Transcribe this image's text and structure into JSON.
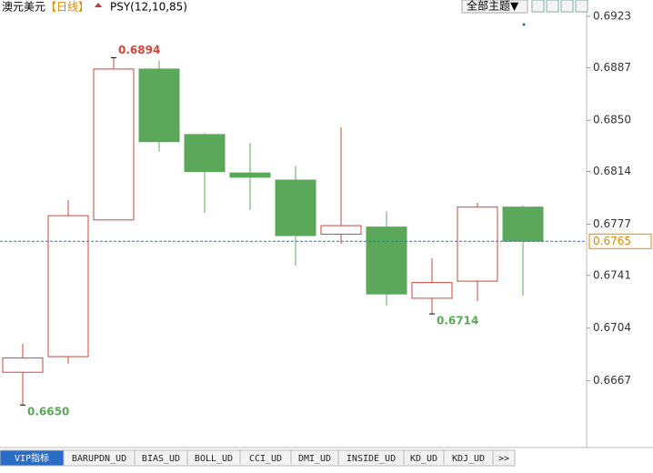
{
  "header": {
    "symbol": "澳元美元",
    "period": "【日线】",
    "indicator": "PSY(12,10,85)",
    "theme_button": "全部主题▼"
  },
  "chart_data": {
    "type": "candlestick",
    "open": [
      0.6673,
      0.6684,
      0.678,
      0.6886,
      0.684,
      0.6813,
      0.6808,
      0.677,
      0.6775,
      0.6725,
      0.6737,
      0.6789
    ],
    "high": [
      0.6693,
      0.6794,
      0.6894,
      0.6892,
      0.6841,
      0.6834,
      0.6818,
      0.6845,
      0.6786,
      0.6753,
      0.6792,
      0.679
    ],
    "low": [
      0.665,
      0.6679,
      0.678,
      0.6828,
      0.6785,
      0.6787,
      0.6748,
      0.6763,
      0.672,
      0.6714,
      0.6723,
      0.6727
    ],
    "close": [
      0.6683,
      0.6783,
      0.6886,
      0.6835,
      0.6814,
      0.681,
      0.6769,
      0.6776,
      0.6728,
      0.6736,
      0.6789,
      0.6765
    ],
    "high_labels": [
      null,
      null,
      "0.6894",
      null,
      null,
      null,
      null,
      null,
      null,
      null,
      null,
      null
    ],
    "low_labels": [
      "0.6650",
      null,
      null,
      null,
      null,
      null,
      null,
      null,
      null,
      "0.6714",
      null,
      null
    ],
    "up_color": "#d0453a",
    "down_color": "#5ca85a",
    "last_price": {
      "value": 0.6765,
      "label": "0.6765"
    },
    "ylim": [
      0.66214,
      0.69345
    ],
    "yticks": [
      {
        "value": 0.6667,
        "label": "0.6667"
      },
      {
        "value": 0.6704,
        "label": "0.6704"
      },
      {
        "value": 0.6741,
        "label": "0.6741"
      },
      {
        "value": 0.6777,
        "label": "0.6777"
      },
      {
        "value": 0.6814,
        "label": "0.6814"
      },
      {
        "value": 0.685,
        "label": "0.6850"
      },
      {
        "value": 0.6887,
        "label": "0.6887"
      },
      {
        "value": 0.6923,
        "label": "0.6923"
      }
    ]
  },
  "tabs": [
    "VIP指标",
    "BARUPDN_UD",
    "BIAS_UD",
    "BOLL_UD",
    "CCI_UD",
    "DMI_UD",
    "INSIDE_UD",
    "KD_UD",
    "KDJ_UD",
    ">>"
  ]
}
